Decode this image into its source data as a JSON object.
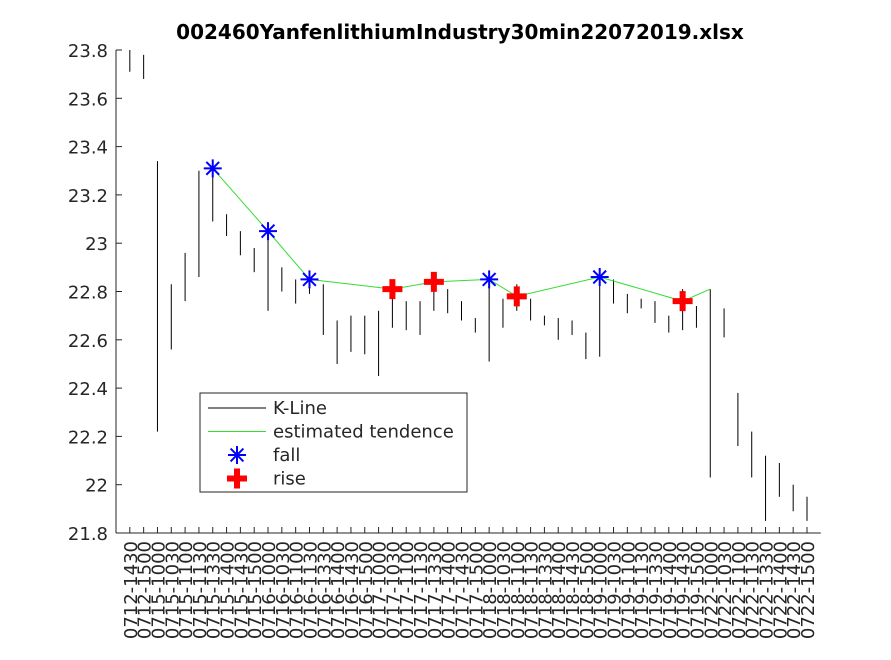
{
  "chart_data": {
    "type": "kline",
    "title": "002460YanfenlithiumIndustry30min22072019.xlsx",
    "categories": [
      "0712-1430",
      "0712-1500",
      "0715-1000",
      "0715-1030",
      "0715-1100",
      "0715-1130",
      "0715-1330",
      "0715-1400",
      "0715-1430",
      "0715-1500",
      "0716-1000",
      "0716-1030",
      "0716-1100",
      "0716-1130",
      "0716-1330",
      "0716-1400",
      "0716-1430",
      "0716-1500",
      "0717-1000",
      "0717-1030",
      "0717-1100",
      "0717-1130",
      "0717-1330",
      "0717-1400",
      "0717-1430",
      "0717-1500",
      "0718-1000",
      "0718-1030",
      "0718-1100",
      "0718-1130",
      "0718-1330",
      "0718-1400",
      "0718-1430",
      "0718-1500",
      "0719-1000",
      "0719-1030",
      "0719-1100",
      "0719-1130",
      "0719-1330",
      "0719-1400",
      "0719-1430",
      "0719-1500",
      "0722-1000",
      "0722-1030",
      "0722-1100",
      "0722-1130",
      "0722-1330",
      "0722-1400",
      "0722-1430",
      "0722-1500"
    ],
    "ylim": [
      21.8,
      23.8
    ],
    "yticks": [
      21.8,
      22,
      22.2,
      22.4,
      22.6,
      22.8,
      23,
      23.2,
      23.4,
      23.6,
      23.8
    ],
    "legend": "lower-left",
    "series": [
      {
        "name": "K-Line",
        "color": "#000000",
        "high": [
          23.8,
          23.78,
          23.34,
          22.83,
          22.96,
          23.3,
          23.34,
          23.12,
          23.05,
          22.98,
          23.06,
          22.9,
          22.85,
          22.88,
          22.83,
          22.68,
          22.7,
          22.7,
          22.72,
          22.84,
          22.76,
          22.76,
          22.87,
          22.81,
          22.76,
          22.69,
          22.88,
          22.77,
          22.83,
          22.77,
          22.7,
          22.69,
          22.68,
          22.63,
          22.89,
          22.85,
          22.79,
          22.77,
          22.76,
          22.7,
          22.81,
          22.74,
          22.81,
          22.73,
          22.38,
          22.22,
          22.12,
          22.09,
          22.0,
          21.95
        ],
        "low": [
          23.71,
          23.68,
          22.22,
          22.56,
          22.76,
          22.86,
          23.09,
          23.03,
          22.95,
          22.88,
          22.72,
          22.8,
          22.75,
          22.79,
          22.62,
          22.5,
          22.55,
          22.54,
          22.45,
          22.65,
          22.64,
          22.62,
          22.72,
          22.71,
          22.68,
          22.63,
          22.51,
          22.65,
          22.72,
          22.68,
          22.66,
          22.6,
          22.62,
          22.52,
          22.53,
          22.75,
          22.71,
          22.73,
          22.67,
          22.63,
          22.64,
          22.65,
          22.03,
          22.61,
          22.16,
          22.03,
          21.85,
          21.95,
          21.89,
          21.85
        ]
      },
      {
        "name": "estimated tendence",
        "color": "#33dd33",
        "x": [
          "0715-1330",
          "0716-1000",
          "0716-1130",
          "0717-1030",
          "0717-1330",
          "0718-1000",
          "0718-1100",
          "0719-1000",
          "0719-1430",
          "0722-1000"
        ],
        "values": [
          23.31,
          23.05,
          22.85,
          22.81,
          22.84,
          22.85,
          22.78,
          22.86,
          22.76,
          22.81
        ]
      },
      {
        "name": "fall",
        "color": "#0000ff",
        "x": [
          "0715-1330",
          "0716-1000",
          "0716-1130",
          "0718-1000",
          "0719-1000"
        ],
        "values": [
          23.31,
          23.05,
          22.85,
          22.85,
          22.86
        ]
      },
      {
        "name": "rise",
        "color": "#ff0000",
        "x": [
          "0717-1030",
          "0717-1330",
          "0718-1100",
          "0719-1430"
        ],
        "values": [
          22.81,
          22.84,
          22.78,
          22.76
        ]
      }
    ]
  }
}
